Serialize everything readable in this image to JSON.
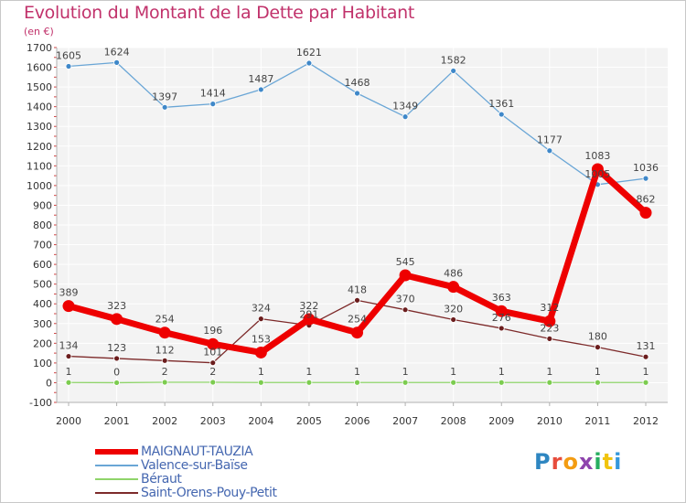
{
  "title": "Evolution du Montant de la Dette par Habitant",
  "subtitle": "(en €)",
  "logo": {
    "letters": [
      "P",
      "r",
      "o",
      "x",
      "i",
      "t",
      "i"
    ],
    "colors": [
      "#2e86c1",
      "#e74c3c",
      "#f39c12",
      "#8e44ad",
      "#27ae60",
      "#f1c40f",
      "#3498db"
    ]
  },
  "chart_data": {
    "type": "line",
    "title": "Evolution du Montant de la Dette par Habitant",
    "subtitle": "(en €)",
    "xlabel": "",
    "ylabel": "",
    "categories": [
      "2000",
      "2001",
      "2002",
      "2003",
      "2004",
      "2005",
      "2006",
      "2007",
      "2008",
      "2009",
      "2010",
      "2011",
      "2012"
    ],
    "ylim": [
      -100,
      1700
    ],
    "yticks": [
      -100,
      0,
      100,
      200,
      300,
      400,
      500,
      600,
      700,
      800,
      900,
      1000,
      1100,
      1200,
      1300,
      1400,
      1500,
      1600,
      1700
    ],
    "grid": true,
    "legend_position": "bottom-left",
    "series": [
      {
        "name": "MAIGNAUT-TAUZIA",
        "color": "#ee0000",
        "marker_color": "#ee0000",
        "bold": true,
        "values": [
          389,
          323,
          254,
          196,
          153,
          322,
          254,
          545,
          486,
          363,
          312,
          1083,
          862
        ]
      },
      {
        "name": "Valence-sur-Baïse",
        "color": "#6aa6d6",
        "marker_color": "#3f88c9",
        "bold": false,
        "values": [
          1605,
          1624,
          1397,
          1414,
          1487,
          1621,
          1468,
          1349,
          1582,
          1361,
          1177,
          1005,
          1036
        ]
      },
      {
        "name": "Béraut",
        "color": "#8fd46a",
        "marker_color": "#7ccc4f",
        "bold": false,
        "values": [
          1,
          0,
          2,
          2,
          1,
          1,
          1,
          1,
          1,
          1,
          1,
          1,
          1
        ]
      },
      {
        "name": "Saint-Orens-Pouy-Petit",
        "color": "#7d2a2a",
        "marker_color": "#6b1d1d",
        "bold": false,
        "values": [
          134,
          123,
          112,
          101,
          324,
          291,
          418,
          370,
          320,
          276,
          223,
          180,
          131
        ]
      }
    ]
  }
}
